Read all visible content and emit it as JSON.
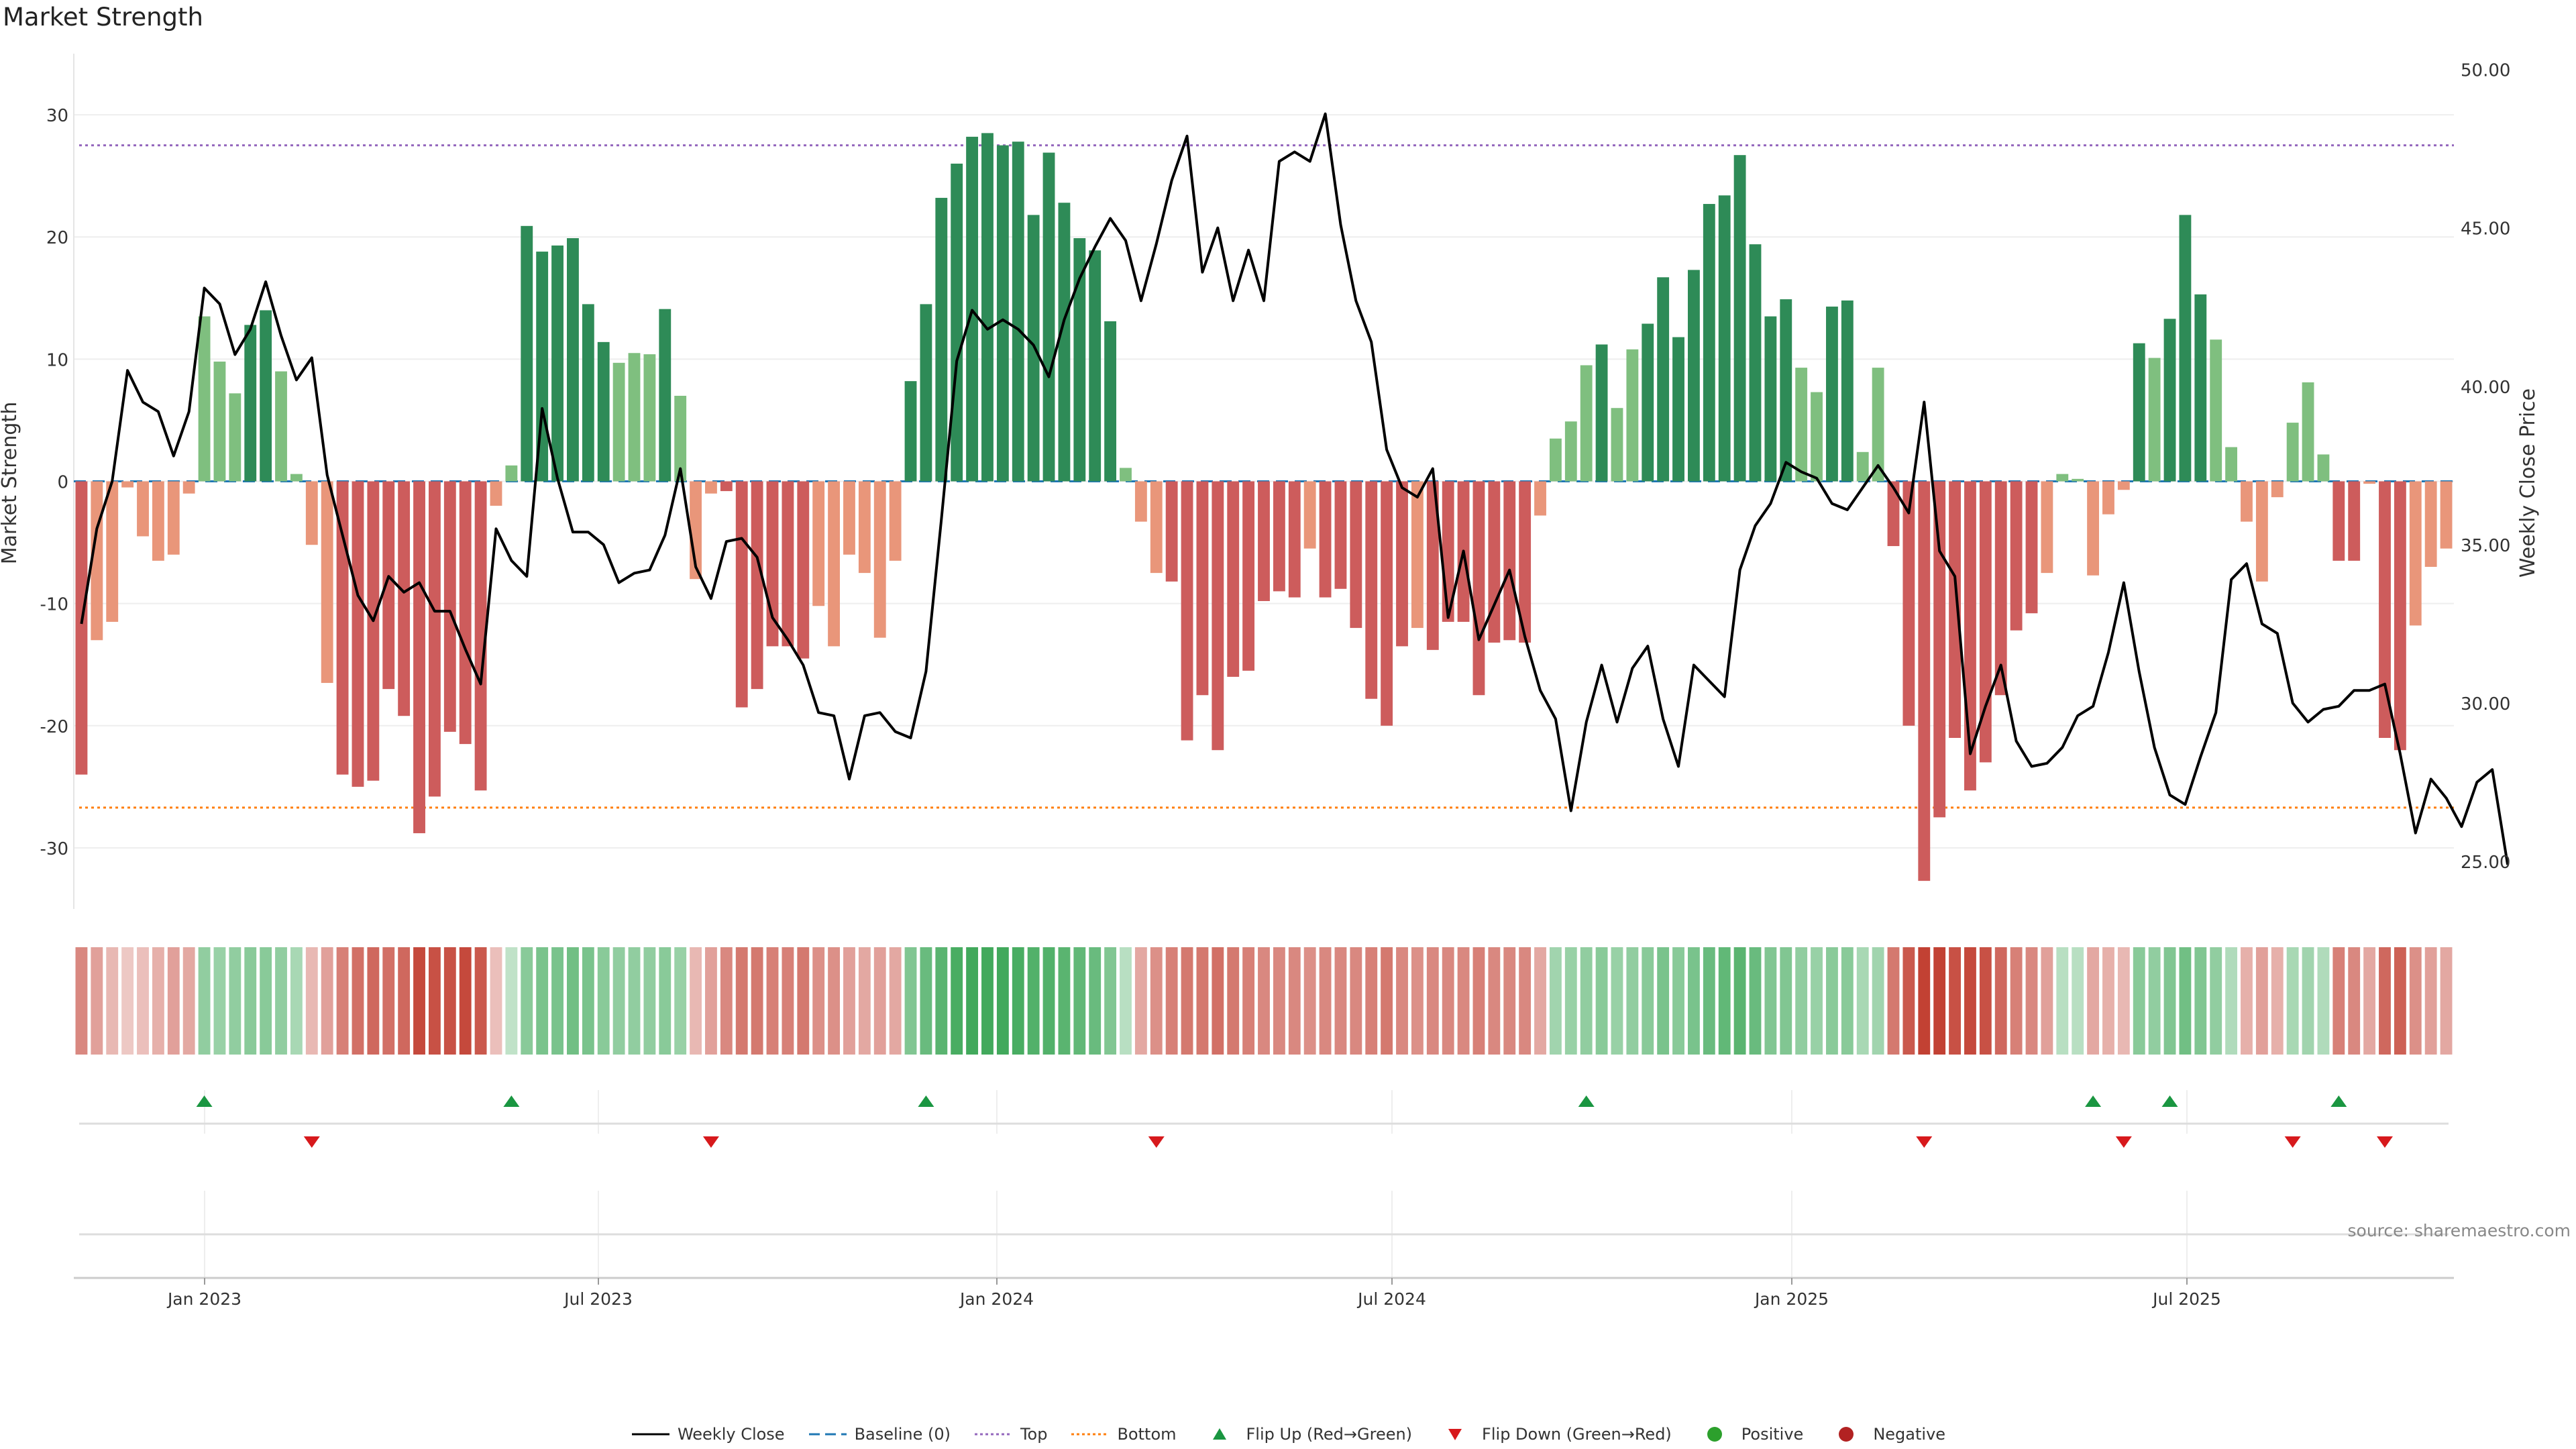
{
  "title": "Market Strength",
  "source": "source: sharemaestro.com",
  "colors": {
    "green_dark": "#2e8b57",
    "green_light": "#7fbf7f",
    "red_dark": "#cd5c5c",
    "red_light": "#e9967a",
    "line": "#000000",
    "baseline": "#1f77b4",
    "top": "#9467bd",
    "bottom": "#ff7f0e",
    "flip_up": "#1a9641",
    "flip_down": "#d7191c",
    "positive": "#2ca02c",
    "negative": "#b22222"
  },
  "legend": [
    {
      "label": "Weekly Close",
      "kind": "line"
    },
    {
      "label": "Baseline (0)",
      "kind": "dash"
    },
    {
      "label": "Top",
      "kind": "dot-top"
    },
    {
      "label": "Bottom",
      "kind": "dot-bottom"
    },
    {
      "label": "Flip Up (Red→Green)",
      "kind": "tri-up"
    },
    {
      "label": "Flip Down (Green→Red)",
      "kind": "tri-down"
    },
    {
      "label": "Positive",
      "kind": "dot-pos"
    },
    {
      "label": "Negative",
      "kind": "dot-neg"
    }
  ],
  "chart_data": {
    "type": "bar",
    "title": "Market Strength",
    "ylabel": "Market Strength",
    "y2label": "Weekly Close Price",
    "ylim": [
      -35,
      35
    ],
    "y2lim": [
      23.5,
      50.5
    ],
    "yticks": [
      -30,
      -20,
      -10,
      0,
      10,
      20,
      30
    ],
    "y2ticks": [
      "25.00",
      "30.00",
      "35.00",
      "40.00",
      "45.00",
      "50.00"
    ],
    "xticks": [
      "Jan 2023",
      "Jul 2023",
      "Jan 2024",
      "Jul 2024",
      "Jan 2025",
      "Jul 2025"
    ],
    "reference_lines": {
      "top": 27.5,
      "bottom": -26.7,
      "baseline": 0
    },
    "strength": [
      -24,
      -13,
      -11.5,
      -0.5,
      -4.5,
      -6.5,
      -6,
      -1,
      13.5,
      9.8,
      7.2,
      12.8,
      14,
      9,
      0.6,
      -5.2,
      -16.5,
      -24,
      -25,
      -24.5,
      -17,
      -19.2,
      -28.8,
      -25.8,
      -20.5,
      -21.5,
      -25.3,
      -2,
      1.3,
      20.9,
      18.8,
      19.3,
      19.9,
      14.5,
      11.4,
      9.7,
      10.5,
      10.4,
      14.1,
      7,
      -8,
      -1,
      -0.8,
      -18.5,
      -17,
      -13.5,
      -13.5,
      -14.5,
      -10.2,
      -13.5,
      -6,
      -7.5,
      -12.8,
      -6.5,
      8.2,
      14.5,
      23.2,
      26,
      28.2,
      28.5,
      27.5,
      27.8,
      21.8,
      26.9,
      22.8,
      19.9,
      18.9,
      13.1,
      1.1,
      -3.3,
      -7.5,
      -8.2,
      -21.2,
      -17.5,
      -22,
      -16,
      -15.5,
      -9.8,
      -9,
      -9.5,
      -5.5,
      -9.5,
      -8.8,
      -12,
      -17.8,
      -20,
      -13.5,
      -12,
      -13.8,
      -11.5,
      -11.5,
      -17.5,
      -13.2,
      -13,
      -13.2,
      -2.8,
      3.5,
      4.9,
      9.5,
      11.2,
      6,
      10.8,
      12.9,
      16.7,
      11.8,
      17.3,
      22.7,
      23.4,
      26.7,
      19.4,
      13.5,
      14.9,
      9.3,
      7.3,
      14.3,
      14.8,
      2.4,
      9.3,
      -5.3,
      -20,
      -32.7,
      -27.5,
      -21,
      -25.3,
      -23,
      -17.5,
      -12.2,
      -10.8,
      -7.5,
      0.6,
      0.2,
      -7.7,
      -2.7,
      -0.7,
      11.3,
      10.1,
      13.3,
      21.8,
      15.3,
      11.6,
      2.8,
      -3.3,
      -8.2,
      -1.3,
      4.8,
      8.1,
      2.2,
      -6.5,
      -6.5,
      -0.2,
      -21,
      -22,
      -11.8,
      -7,
      -5.5
    ],
    "close": [
      32.5,
      35.5,
      37,
      40.5,
      39.5,
      39.2,
      37.8,
      39.2,
      43.1,
      42.6,
      41,
      41.8,
      43.3,
      41.6,
      40.2,
      40.9,
      37.2,
      35.3,
      33.4,
      32.6,
      34,
      33.5,
      33.8,
      32.9,
      32.9,
      31.7,
      30.6,
      35.5,
      34.5,
      34,
      39.3,
      37.1,
      35.4,
      35.4,
      35,
      33.8,
      34.1,
      34.2,
      35.3,
      37.4,
      34.3,
      33.3,
      35.1,
      35.2,
      34.6,
      32.7,
      32,
      31.2,
      29.7,
      29.6,
      27.6,
      29.6,
      29.7,
      29.1,
      28.9,
      31,
      35.8,
      40.8,
      42.4,
      41.8,
      42.1,
      41.8,
      41.3,
      40.3,
      42.1,
      43.4,
      44.4,
      45.3,
      44.6,
      42.7,
      44.5,
      46.5,
      47.9,
      43.6,
      45,
      42.7,
      44.3,
      42.7,
      47.1,
      47.4,
      47.1,
      48.6,
      45.1,
      42.7,
      41.4,
      38,
      36.8,
      36.5,
      37.4,
      32.7,
      34.8,
      32,
      33.1,
      34.2,
      32.1,
      30.4,
      29.5,
      26.6,
      29.4,
      31.2,
      29.4,
      31.1,
      31.8,
      29.5,
      28,
      31.2,
      30.7,
      30.2,
      34.2,
      35.6,
      36.3,
      37.6,
      37.3,
      37.1,
      36.3,
      36.1,
      36.8,
      37.5,
      36.8,
      36,
      39.5,
      34.8,
      34,
      28.4,
      29.9,
      31.2,
      28.8,
      28,
      28.1,
      28.6,
      29.6,
      29.9,
      31.6,
      33.8,
      31,
      28.6,
      27.1,
      26.8,
      28.3,
      29.7,
      33.9,
      34.4,
      32.5,
      32.2,
      30,
      29.4,
      29.8,
      29.9,
      30.4,
      30.4,
      30.6,
      28.4,
      25.9,
      27.6,
      27,
      26.1,
      27.5,
      27.9,
      24.9
    ],
    "tint_strength": [
      0.5,
      0.35,
      0.2,
      0.1,
      0.15,
      0.25,
      0.35,
      0.3,
      0.45,
      0.4,
      0.45,
      0.5,
      0.5,
      0.45,
      0.3,
      0.2,
      0.35,
      0.55,
      0.65,
      0.7,
      0.65,
      0.7,
      0.9,
      0.85,
      0.85,
      0.9,
      0.8,
      0.15,
      0.15,
      0.5,
      0.6,
      0.6,
      0.65,
      0.6,
      0.5,
      0.45,
      0.45,
      0.45,
      0.5,
      0.4,
      0.2,
      0.35,
      0.5,
      0.6,
      0.6,
      0.55,
      0.55,
      0.6,
      0.45,
      0.45,
      0.35,
      0.3,
      0.35,
      0.3,
      0.55,
      0.7,
      0.8,
      0.9,
      0.95,
      0.95,
      0.95,
      0.9,
      0.85,
      0.85,
      0.8,
      0.75,
      0.7,
      0.55,
      0.2,
      0.3,
      0.45,
      0.55,
      0.6,
      0.6,
      0.65,
      0.6,
      0.55,
      0.5,
      0.5,
      0.5,
      0.45,
      0.5,
      0.5,
      0.5,
      0.55,
      0.6,
      0.5,
      0.45,
      0.5,
      0.5,
      0.5,
      0.55,
      0.5,
      0.5,
      0.5,
      0.3,
      0.35,
      0.4,
      0.45,
      0.5,
      0.4,
      0.45,
      0.5,
      0.6,
      0.5,
      0.6,
      0.7,
      0.75,
      0.8,
      0.7,
      0.55,
      0.55,
      0.45,
      0.4,
      0.5,
      0.5,
      0.3,
      0.35,
      0.6,
      0.8,
      0.95,
      0.95,
      0.85,
      0.9,
      0.85,
      0.7,
      0.55,
      0.5,
      0.35,
      0.2,
      0.2,
      0.3,
      0.25,
      0.2,
      0.5,
      0.45,
      0.55,
      0.65,
      0.55,
      0.45,
      0.25,
      0.25,
      0.35,
      0.25,
      0.3,
      0.35,
      0.25,
      0.55,
      0.5,
      0.3,
      0.7,
      0.75,
      0.45,
      0.35,
      0.3
    ],
    "flips_up": [
      8,
      28,
      55,
      98,
      131,
      136,
      147
    ],
    "flips_down": [
      15,
      41,
      70,
      120,
      133,
      144,
      150
    ]
  }
}
